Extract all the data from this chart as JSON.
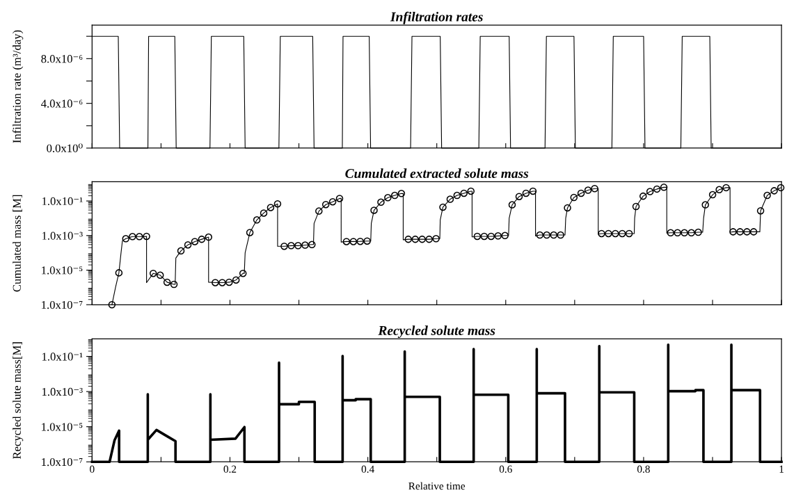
{
  "chart_data": [
    {
      "type": "line",
      "title": "Infiltration rates",
      "ylabel": "Infiltration rate (m³/day)",
      "grid": false,
      "tick_labels": "y",
      "marker": "none",
      "line_style": "solid",
      "xlim": [
        0,
        1
      ],
      "xticks": [
        0,
        0.1,
        0.2,
        0.3,
        0.4,
        0.5,
        0.6,
        0.7,
        0.8,
        0.9,
        1
      ],
      "ylim": [
        0,
        1.1e-05
      ],
      "yticks": [
        {
          "value": 0,
          "label": "0.0x10⁰"
        },
        {
          "value": 2e-06,
          "label": null
        },
        {
          "value": 4e-06,
          "label": "4.0x10⁻⁶"
        },
        {
          "value": 6e-06,
          "label": null
        },
        {
          "value": 8e-06,
          "label": "8.0x10⁻⁶"
        },
        {
          "value": 1e-05,
          "label": null
        }
      ],
      "series": [
        {
          "color": "#000000",
          "x": [
            0,
            0.038,
            0.04,
            0.081,
            0.082,
            0.12,
            0.122,
            0.171,
            0.173,
            0.22,
            0.222,
            0.271,
            0.273,
            0.32,
            0.322,
            0.363,
            0.364,
            0.402,
            0.404,
            0.462,
            0.464,
            0.505,
            0.507,
            0.561,
            0.563,
            0.605,
            0.607,
            0.657,
            0.659,
            0.699,
            0.701,
            0.754,
            0.756,
            0.8,
            0.802,
            0.854,
            0.856,
            0.896,
            0.898,
            1.0
          ],
          "values": [
            1e-05,
            1e-05,
            0,
            0,
            1e-05,
            1e-05,
            0,
            0,
            1e-05,
            1e-05,
            0,
            0,
            1e-05,
            1e-05,
            0,
            0,
            1e-05,
            1e-05,
            0,
            0,
            1e-05,
            1e-05,
            0,
            0,
            1e-05,
            1e-05,
            0,
            0,
            1e-05,
            1e-05,
            0,
            0,
            1e-05,
            1e-05,
            0,
            0,
            1e-05,
            1e-05,
            0,
            0
          ]
        }
      ]
    },
    {
      "type": "line",
      "title": "Cumulated extracted solute mass",
      "ylabel": "Cumulated mass [M]",
      "grid": false,
      "tick_labels": "y",
      "log": true,
      "xlim": [
        0,
        1
      ],
      "xticks": [
        0,
        0.1,
        0.2,
        0.3,
        0.4,
        0.5,
        0.6,
        0.7,
        0.8,
        0.9,
        1
      ],
      "ylim": [
        1e-07,
        1.3
      ],
      "yticks": [
        {
          "value": 1e-07,
          "label": "1.0x10⁻⁷"
        },
        {
          "value": 1e-05,
          "label": "1.0x10⁻⁵"
        },
        {
          "value": 0.001,
          "label": "1.0x10⁻³"
        },
        {
          "value": 0.1,
          "label": "1.0x10⁻¹"
        }
      ],
      "series": [
        {
          "type": "line",
          "color": "#000000",
          "marker": "none",
          "line_style": "solid",
          "x": [
            0.0288,
            0.034,
            0.0389,
            0.042,
            0.044,
            0.0489,
            0.0586,
            0.0686,
            0.079,
            0.079,
            0.0887,
            0.0988,
            0.1088,
            0.1188,
            0.1205,
            0.1215,
            0.1289,
            0.139,
            0.149,
            0.159,
            0.169,
            0.169,
            0.1787,
            0.1888,
            0.1988,
            0.2088,
            0.2189,
            0.2208,
            0.222,
            0.2289,
            0.239,
            0.249,
            0.259,
            0.2691,
            0.2691,
            0.2787,
            0.2888,
            0.2988,
            0.309,
            0.3189,
            0.3211,
            0.322,
            0.329,
            0.339,
            0.349,
            0.359,
            0.3613,
            0.3613,
            0.369,
            0.379,
            0.389,
            0.399,
            0.4042,
            0.405,
            0.409,
            0.419,
            0.429,
            0.439,
            0.4487,
            0.4513,
            0.4513,
            0.4587,
            0.4688,
            0.4788,
            0.4889,
            0.4989,
            0.5044,
            0.505,
            0.5089,
            0.5194,
            0.5294,
            0.5394,
            0.5495,
            0.5512,
            0.5512,
            0.5587,
            0.5688,
            0.5788,
            0.5889,
            0.5989,
            0.6041,
            0.605,
            0.6093,
            0.6194,
            0.6294,
            0.6395,
            0.6432,
            0.6432,
            0.6495,
            0.6595,
            0.6696,
            0.6796,
            0.686,
            0.687,
            0.6896,
            0.6989,
            0.7093,
            0.7194,
            0.729,
            0.7342,
            0.7342,
            0.739,
            0.749,
            0.759,
            0.769,
            0.779,
            0.7864,
            0.787,
            0.789,
            0.7993,
            0.8093,
            0.8193,
            0.8294,
            0.8336,
            0.8336,
            0.8392,
            0.8492,
            0.8592,
            0.8693,
            0.8793,
            0.8857,
            0.887,
            0.8896,
            0.9001,
            0.9097,
            0.9197,
            0.9254,
            0.9254,
            0.9298,
            0.9399,
            0.9499,
            0.9596,
            0.9686,
            0.9697,
            0.9793,
            0.9894,
            0.999
          ],
          "values": [
            1e-07,
            1e-06,
            7e-06,
            0.0001,
            0.0005,
            0.00066,
            0.00087,
            0.00087,
            0.0009,
            1.9e-06,
            6.5e-06,
            5.1e-06,
            2e-06,
            1.5e-06,
            1.5e-06,
            5e-05,
            0.00013,
            0.00029,
            0.00045,
            0.00061,
            0.00081,
            2e-06,
            1.9e-06,
            1.9e-06,
            2e-06,
            2.7e-06,
            6.5e-06,
            6.5e-06,
            0.0001,
            0.0015,
            0.008,
            0.02,
            0.042,
            0.068,
            0.00024,
            0.00024,
            0.00026,
            0.00026,
            0.00028,
            0.0003,
            0.0003,
            0.005,
            0.026,
            0.062,
            0.09,
            0.14,
            0.14,
            0.00042,
            0.00045,
            0.00045,
            0.00046,
            0.00048,
            0.00048,
            0.005,
            0.029,
            0.085,
            0.155,
            0.21,
            0.27,
            0.27,
            0.00057,
            0.00061,
            0.00061,
            0.00061,
            0.00061,
            0.00066,
            0.00066,
            0.008,
            0.044,
            0.126,
            0.21,
            0.28,
            0.37,
            0.37,
            0.00083,
            0.0009,
            0.0009,
            0.0009,
            0.00095,
            0.001,
            0.001,
            0.01,
            0.06,
            0.18,
            0.28,
            0.37,
            0.37,
            0.00095,
            0.00107,
            0.00107,
            0.00107,
            0.00107,
            0.00107,
            0.01,
            0.04,
            0.16,
            0.28,
            0.42,
            0.52,
            0.52,
            0.0012,
            0.0013,
            0.0013,
            0.0013,
            0.0013,
            0.0013,
            0.0013,
            0.01,
            0.048,
            0.19,
            0.35,
            0.49,
            0.62,
            0.62,
            0.0014,
            0.00145,
            0.00145,
            0.00145,
            0.00145,
            0.00155,
            0.00155,
            0.01,
            0.06,
            0.23,
            0.45,
            0.59,
            0.59,
            0.00155,
            0.00165,
            0.00165,
            0.00165,
            0.00165,
            0.00165,
            0.027,
            0.21,
            0.39,
            0.59
          ]
        },
        {
          "type": "scatter",
          "color": "#000000",
          "marker": "circle",
          "x": [
            0.0288,
            0.0389,
            0.0489,
            0.0586,
            0.0686,
            0.079,
            0.0887,
            0.0988,
            0.1088,
            0.1188,
            0.1289,
            0.139,
            0.149,
            0.159,
            0.169,
            0.1787,
            0.1888,
            0.1988,
            0.2088,
            0.2189,
            0.2289,
            0.239,
            0.249,
            0.259,
            0.2691,
            0.2787,
            0.2888,
            0.2988,
            0.309,
            0.3189,
            0.329,
            0.339,
            0.349,
            0.359,
            0.369,
            0.379,
            0.389,
            0.399,
            0.409,
            0.419,
            0.429,
            0.439,
            0.4487,
            0.4587,
            0.4688,
            0.4788,
            0.4889,
            0.4989,
            0.5089,
            0.5194,
            0.5294,
            0.5394,
            0.5495,
            0.5587,
            0.5688,
            0.5788,
            0.5889,
            0.5989,
            0.6093,
            0.6194,
            0.6294,
            0.6395,
            0.6495,
            0.6595,
            0.6696,
            0.6796,
            0.6896,
            0.6989,
            0.7093,
            0.7194,
            0.729,
            0.739,
            0.749,
            0.759,
            0.769,
            0.779,
            0.789,
            0.7993,
            0.8093,
            0.8193,
            0.8294,
            0.8392,
            0.8492,
            0.8592,
            0.8693,
            0.8793,
            0.8896,
            0.9001,
            0.9097,
            0.9197,
            0.9298,
            0.9399,
            0.9499,
            0.9596,
            0.9697,
            0.9793,
            0.9894,
            0.999
          ],
          "values": [
            1e-07,
            7e-06,
            0.00066,
            0.00087,
            0.00087,
            0.0009,
            6.5e-06,
            5.1e-06,
            2e-06,
            1.5e-06,
            0.00013,
            0.00029,
            0.00045,
            0.00061,
            0.00081,
            1.9e-06,
            1.9e-06,
            2e-06,
            2.7e-06,
            6.5e-06,
            0.0015,
            0.008,
            0.02,
            0.042,
            0.068,
            0.00024,
            0.00026,
            0.00026,
            0.00028,
            0.0003,
            0.026,
            0.062,
            0.09,
            0.14,
            0.00045,
            0.00045,
            0.00046,
            0.00048,
            0.029,
            0.085,
            0.155,
            0.21,
            0.27,
            0.00061,
            0.00061,
            0.00061,
            0.00061,
            0.00066,
            0.044,
            0.126,
            0.21,
            0.28,
            0.37,
            0.0009,
            0.0009,
            0.0009,
            0.00095,
            0.001,
            0.06,
            0.18,
            0.28,
            0.37,
            0.00107,
            0.00107,
            0.00107,
            0.00107,
            0.04,
            0.16,
            0.28,
            0.42,
            0.52,
            0.0013,
            0.0013,
            0.0013,
            0.0013,
            0.0013,
            0.048,
            0.19,
            0.35,
            0.49,
            0.62,
            0.00145,
            0.00145,
            0.00145,
            0.00145,
            0.00155,
            0.06,
            0.23,
            0.45,
            0.59,
            0.00165,
            0.00165,
            0.00165,
            0.00165,
            0.027,
            0.21,
            0.39,
            0.59
          ]
        }
      ]
    },
    {
      "type": "line",
      "title": "Recycled solute mass",
      "ylabel": "Recycled solute mass[M]",
      "xlabel": "Relative time",
      "grid": false,
      "log": true,
      "marker": "none",
      "line_style": "solid",
      "xlim": [
        0,
        1
      ],
      "xticks": [
        {
          "value": 0,
          "label": "0"
        },
        {
          "value": 0.1,
          "label": null
        },
        {
          "value": 0.2,
          "label": "0.2"
        },
        {
          "value": 0.3,
          "label": null
        },
        {
          "value": 0.4,
          "label": "0.4"
        },
        {
          "value": 0.5,
          "label": null
        },
        {
          "value": 0.6,
          "label": "0.6"
        },
        {
          "value": 0.7,
          "label": null
        },
        {
          "value": 0.8,
          "label": "0.8"
        },
        {
          "value": 0.9,
          "label": null
        },
        {
          "value": 1,
          "label": "1"
        }
      ],
      "ylim": [
        1e-07,
        1
      ],
      "yticks": [
        {
          "value": 1e-07,
          "label": "1.0x10⁻⁷"
        },
        {
          "value": 1e-05,
          "label": "1.0x10⁻⁵"
        },
        {
          "value": 0.001,
          "label": "1.0x10⁻³"
        },
        {
          "value": 0.1,
          "label": "1.0x10⁻¹"
        }
      ],
      "series": [
        {
          "color": "#000000",
          "x": [
            0,
            0.0254,
            0.0326,
            0.0392,
            0.0392,
            0.0808,
            0.0808,
            0.0808,
            0.0934,
            0.11,
            0.121,
            0.121,
            0.1716,
            0.1716,
            0.1716,
            0.208,
            0.221,
            0.221,
            0.2712,
            0.2712,
            0.2712,
            0.3,
            0.3,
            0.3229,
            0.3229,
            0.3634,
            0.3634,
            0.3634,
            0.3824,
            0.3824,
            0.4042,
            0.4042,
            0.4535,
            0.4535,
            0.4535,
            0.5044,
            0.5044,
            0.5535,
            0.5535,
            0.5535,
            0.6037,
            0.6037,
            0.645,
            0.645,
            0.645,
            0.686,
            0.686,
            0.7357,
            0.7357,
            0.7357,
            0.7864,
            0.7864,
            0.8357,
            0.8357,
            0.8357,
            0.8752,
            0.8752,
            0.8868,
            0.8868,
            0.9273,
            0.9273,
            0.9273,
            0.9689,
            0.9689,
            1.0
          ],
          "values": [
            1e-07,
            1e-07,
            1.7e-06,
            6e-06,
            1e-07,
            1e-07,
            0.0007,
            1.8e-06,
            6.5e-06,
            2.7e-06,
            1.5e-06,
            1e-07,
            1e-07,
            0.0007,
            1.8e-06,
            2.1e-06,
            9.5e-06,
            1e-07,
            1e-07,
            0.044,
            0.00019,
            0.00019,
            0.00026,
            0.00026,
            1e-07,
            1e-07,
            0.105,
            0.00032,
            0.00032,
            0.00037,
            0.00037,
            1e-07,
            1e-07,
            0.19,
            0.0005,
            0.0005,
            1e-07,
            1e-07,
            0.26,
            0.00066,
            0.00066,
            1e-07,
            1e-07,
            0.26,
            0.0008,
            0.0008,
            1e-07,
            1e-07,
            0.39,
            0.00091,
            0.00091,
            1e-07,
            1e-07,
            0.46,
            0.00105,
            0.00105,
            0.0012,
            0.0012,
            1e-07,
            1e-07,
            0.46,
            0.0012,
            0.0012,
            1e-07,
            1e-07
          ]
        }
      ]
    }
  ]
}
